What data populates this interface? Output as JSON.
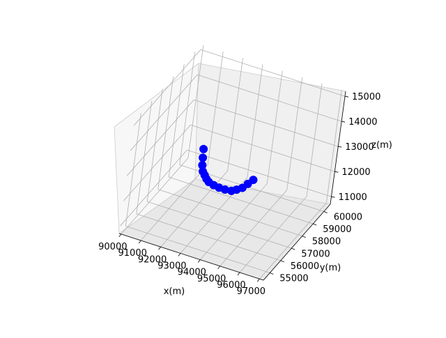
{
  "chart_data": {
    "type": "scatter",
    "projection": "3d",
    "grid": true,
    "xlabel": "x(m)",
    "ylabel": "y(m)",
    "zlabel": "z(m)",
    "xlim": [
      89900,
      97200
    ],
    "ylim": [
      54400,
      60600
    ],
    "zlim": [
      10700,
      15200
    ],
    "x_ticks": [
      90000,
      91000,
      92000,
      93000,
      94000,
      95000,
      96000,
      97000
    ],
    "y_ticks": [
      55000,
      56000,
      57000,
      58000,
      59000,
      60000
    ],
    "z_ticks": [
      11000,
      12000,
      13000,
      14000,
      15000
    ],
    "x_tick_labels": [
      "90000",
      "91000",
      "92000",
      "93000",
      "94000",
      "95000",
      "96000",
      "97000"
    ],
    "y_tick_labels": [
      "55000",
      "56000",
      "57000",
      "58000",
      "59000",
      "60000"
    ],
    "z_tick_labels": [
      "11000",
      "12000",
      "13000",
      "14000",
      "15000"
    ],
    "series": [
      {
        "marker_color": "#0000ff",
        "points": [
          {
            "x": 91400,
            "y": 59000,
            "z": 12200
          },
          {
            "x": 91600,
            "y": 58600,
            "z": 12100
          },
          {
            "x": 91800,
            "y": 58200,
            "z": 12050
          },
          {
            "x": 92000,
            "y": 57900,
            "z": 12000
          },
          {
            "x": 92200,
            "y": 57700,
            "z": 12000
          },
          {
            "x": 92400,
            "y": 57500,
            "z": 12000
          },
          {
            "x": 92600,
            "y": 57350,
            "z": 12000
          },
          {
            "x": 92900,
            "y": 57250,
            "z": 12000
          },
          {
            "x": 93200,
            "y": 57200,
            "z": 12000
          },
          {
            "x": 93500,
            "y": 57200,
            "z": 12000
          },
          {
            "x": 93800,
            "y": 57250,
            "z": 12000
          },
          {
            "x": 94000,
            "y": 57350,
            "z": 12050
          },
          {
            "x": 94200,
            "y": 57500,
            "z": 12100
          },
          {
            "x": 94350,
            "y": 57700,
            "z": 12200
          },
          {
            "x": 94500,
            "y": 57900,
            "z": 12300
          }
        ]
      }
    ]
  }
}
